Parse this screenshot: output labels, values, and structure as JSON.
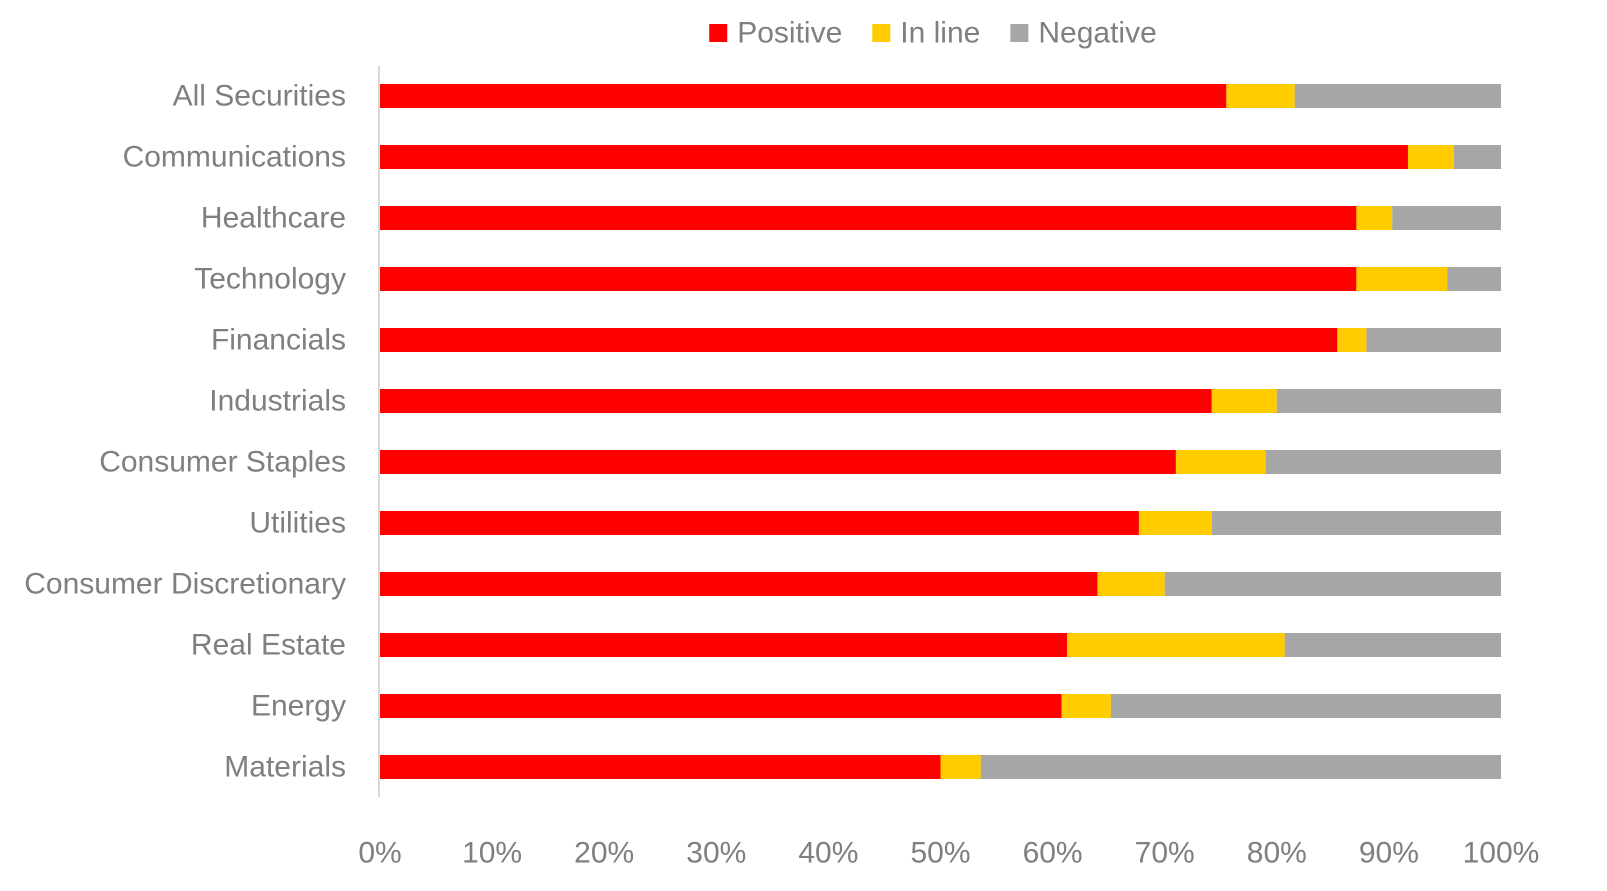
{
  "chart_data": {
    "type": "bar",
    "orientation": "horizontal",
    "stacked": true,
    "categories": [
      "All Securities",
      "Communications",
      "Healthcare",
      "Technology",
      "Financials",
      "Industrials",
      "Consumer Staples",
      "Utilities",
      "Consumer Discretionary",
      "Real Estate",
      "Energy",
      "Materials"
    ],
    "series": [
      {
        "name": "Positive",
        "color": "#ff0000",
        "values": [
          75.5,
          91.7,
          87.1,
          87.1,
          85.4,
          74.2,
          71.0,
          67.7,
          64.0,
          61.3,
          60.8,
          50.0
        ]
      },
      {
        "name": "In line",
        "color": "#ffcc00",
        "values": [
          6.1,
          4.1,
          3.2,
          8.1,
          2.6,
          5.8,
          8.0,
          6.5,
          6.0,
          19.4,
          4.4,
          3.6
        ]
      },
      {
        "name": "Negative",
        "color": "#a6a6a6",
        "values": [
          18.4,
          4.2,
          9.7,
          4.8,
          12.0,
          20.0,
          21.0,
          25.8,
          30.0,
          19.3,
          34.8,
          46.4
        ]
      }
    ],
    "xlim": [
      0,
      100
    ],
    "x_ticks": [
      "0%",
      "10%",
      "20%",
      "30%",
      "40%",
      "50%",
      "60%",
      "70%",
      "80%",
      "90%",
      "100%"
    ],
    "grid": false,
    "legend_position": "top"
  }
}
